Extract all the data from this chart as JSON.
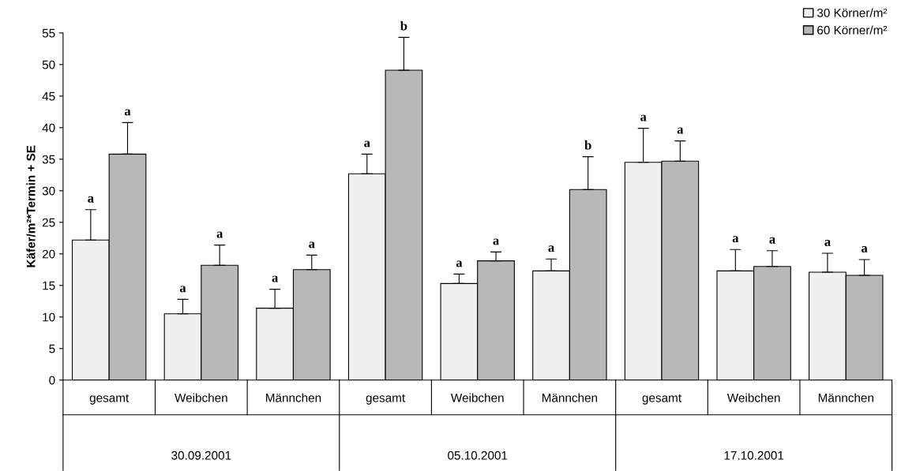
{
  "chart_data": {
    "type": "bar",
    "ylabel": "Käfer/m²*Termin + SE",
    "categories": [
      "gesamt",
      "Weibchen",
      "Männchen",
      "gesamt",
      "Weibchen",
      "Männchen",
      "gesamt",
      "Weibchen",
      "Männchen"
    ],
    "series": [
      {
        "name": "30 Körner/m²",
        "color": "#f0f0f0",
        "values": [
          22.2,
          10.5,
          11.4,
          32.7,
          15.3,
          17.3,
          34.5,
          17.3,
          17.1
        ],
        "errors": [
          [
            22.2,
            27.0
          ],
          [
            10.5,
            12.8
          ],
          [
            11.4,
            14.4
          ],
          [
            32.7,
            35.8
          ],
          [
            15.3,
            16.8
          ],
          [
            17.3,
            19.2
          ],
          [
            34.5,
            39.9
          ],
          [
            17.3,
            20.7
          ],
          [
            17.1,
            20.1
          ]
        ],
        "value_labels": [
          "a",
          "a",
          "a",
          "a",
          "a",
          "a",
          "a",
          "a",
          "a"
        ]
      },
      {
        "name": "60 Körner/m²",
        "color": "#b8b8b8",
        "values": [
          35.8,
          18.2,
          17.5,
          49.1,
          18.9,
          30.2,
          34.7,
          18.0,
          16.6
        ],
        "errors": [
          [
            35.8,
            40.8
          ],
          [
            18.2,
            21.4
          ],
          [
            17.5,
            19.8
          ],
          [
            49.1,
            54.3
          ],
          [
            18.9,
            20.3
          ],
          [
            30.2,
            35.4
          ],
          [
            34.7,
            37.9
          ],
          [
            18.0,
            20.5
          ],
          [
            16.6,
            19.1
          ]
        ],
        "value_labels": [
          "a",
          "a",
          "a",
          "b",
          "a",
          "b",
          "a",
          "a",
          "a"
        ]
      }
    ],
    "annotations": [
      "30.09.2001",
      "05.10.2001",
      "17.10.2001"
    ],
    "ylim": [
      0,
      55
    ],
    "yticks": [
      0,
      5,
      10,
      15,
      20,
      25,
      30,
      35,
      40,
      45,
      50,
      55
    ],
    "grid": false,
    "legend": "top right"
  }
}
